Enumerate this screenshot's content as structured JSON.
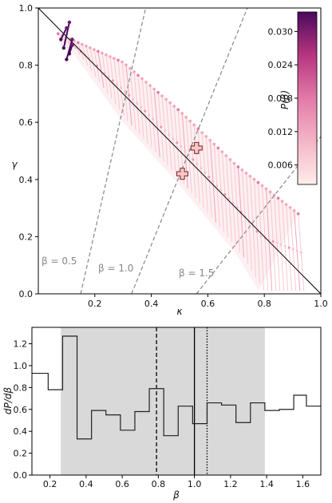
{
  "chart_data": [
    {
      "type": "scatter",
      "xlabel": "κ",
      "ylabel": "γ",
      "xlim": [
        0,
        1
      ],
      "ylim": [
        0,
        1
      ],
      "xticks": [
        "0.2",
        "0.4",
        "0.6",
        "0.8",
        "1.0"
      ],
      "yticks": [
        "0.0",
        "0.2",
        "0.4",
        "0.6",
        "0.8",
        "1.0"
      ],
      "band_upper": [
        [
          0.07,
          0.91
        ],
        [
          0.3,
          0.81
        ],
        [
          0.5,
          0.64
        ],
        [
          0.7,
          0.45
        ],
        [
          0.92,
          0.28
        ]
      ],
      "band_lower": [
        [
          0.11,
          0.86
        ],
        [
          0.3,
          0.6
        ],
        [
          0.5,
          0.38
        ],
        [
          0.7,
          0.14
        ],
        [
          0.78,
          0.01
        ]
      ],
      "dark_segments": [
        [
          0.09,
          0.86,
          0.11,
          0.95
        ],
        [
          0.08,
          0.89,
          0.1,
          0.93
        ],
        [
          0.1,
          0.82,
          0.12,
          0.89
        ],
        [
          0.11,
          0.84,
          0.12,
          0.87
        ]
      ],
      "diagonal": [
        [
          0,
          1
        ],
        [
          1,
          0
        ]
      ],
      "beta_lines": [
        {
          "label": "β = 0.5",
          "points": [
            [
              0.15,
              0
            ],
            [
              0.38,
              1
            ]
          ]
        },
        {
          "label": "β = 1.0",
          "points": [
            [
              0.33,
              0
            ],
            [
              0.74,
              1
            ]
          ]
        },
        {
          "label": "β = 1.5",
          "points": [
            [
              0.56,
              0
            ],
            [
              1.0,
              0.55
            ]
          ]
        }
      ],
      "markers": [
        [
          0.56,
          0.51
        ],
        [
          0.51,
          0.42
        ]
      ],
      "colorbar": {
        "label": "P(β)",
        "ticks": [
          "0.006",
          "0.012",
          "0.018",
          "0.024",
          "0.030"
        ],
        "tick_values": [
          0.006,
          0.012,
          0.018,
          0.024,
          0.03
        ],
        "range": [
          0.0025,
          0.0335
        ],
        "colors": [
          "#fdecea",
          "#f4b6c7",
          "#e27aa8",
          "#b7357f",
          "#4a0a5e"
        ]
      }
    },
    {
      "type": "step",
      "xlabel": "β",
      "ylabel": "dP/dβ",
      "xlim": [
        0.1,
        1.7
      ],
      "ylim": [
        0,
        1.35
      ],
      "xticks": [
        "0.2",
        "0.4",
        "0.6",
        "0.8",
        "1.0",
        "1.2",
        "1.4",
        "1.6"
      ],
      "yticks": [
        "0.0",
        "0.2",
        "0.4",
        "0.6",
        "0.8",
        "1.0",
        "1.2"
      ],
      "bin_edges": [
        0.1,
        0.19,
        0.27,
        0.35,
        0.43,
        0.51,
        0.59,
        0.67,
        0.75,
        0.83,
        0.91,
        0.99,
        1.07,
        1.15,
        1.23,
        1.31,
        1.39,
        1.47,
        1.55,
        1.62,
        1.7
      ],
      "values": [
        0.93,
        0.78,
        1.27,
        0.33,
        0.59,
        0.55,
        0.41,
        0.58,
        0.79,
        0.36,
        0.63,
        0.47,
        0.66,
        0.64,
        0.48,
        0.66,
        0.59,
        0.6,
        0.73,
        0.63
      ],
      "shaded_region": [
        0.26,
        1.39
      ],
      "vlines": [
        {
          "x": 0.79,
          "style": "dashed"
        },
        {
          "x": 1.0,
          "style": "solid"
        },
        {
          "x": 1.07,
          "style": "dotted"
        }
      ]
    }
  ]
}
